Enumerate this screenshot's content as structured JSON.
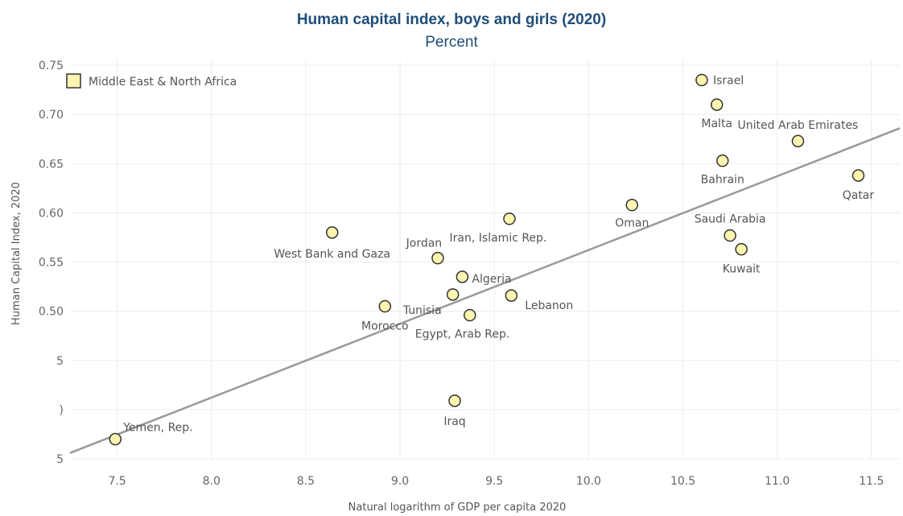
{
  "title": "Human capital index, boys and girls (2020)",
  "subtitle": "Percent",
  "legend": {
    "label": "Middle East & North Africa",
    "color": "#fdf5b0"
  },
  "chart_data": {
    "type": "scatter",
    "title": "Human capital index, boys and girls (2020)",
    "subtitle": "Percent",
    "xlabel": "Natural logarithm of GDP per capita 2020",
    "ylabel": "Human Capital Index, 2020",
    "xlim": [
      7.25,
      11.65
    ],
    "ylim": [
      0.35,
      0.755
    ],
    "x_ticks": [
      "7.5",
      "8.0",
      "8.5",
      "9.0",
      "9.5",
      "10.0",
      "10.5",
      "11.0",
      "11.5"
    ],
    "y_ticks": [
      "0.75",
      "0.70",
      "0.65",
      "0.60",
      "0.55",
      "0.50",
      "5",
      ")",
      "5"
    ],
    "grid": true,
    "legend_position": "top-left",
    "series": [
      {
        "name": "Middle East & North Africa",
        "color": "#fdf5b0",
        "points": [
          {
            "label": "Israel",
            "x": 10.6,
            "y": 0.735
          },
          {
            "label": "Malta",
            "x": 10.68,
            "y": 0.71
          },
          {
            "label": "United Arab Emirates",
            "x": 11.11,
            "y": 0.673
          },
          {
            "label": "Bahrain",
            "x": 10.71,
            "y": 0.653
          },
          {
            "label": "Qatar",
            "x": 11.43,
            "y": 0.638
          },
          {
            "label": "Oman",
            "x": 10.23,
            "y": 0.608
          },
          {
            "label": "Saudi Arabia",
            "x": 10.75,
            "y": 0.577
          },
          {
            "label": "Kuwait",
            "x": 10.81,
            "y": 0.563
          },
          {
            "label": "Iran, Islamic Rep.",
            "x": 9.58,
            "y": 0.594
          },
          {
            "label": "West Bank and Gaza",
            "x": 8.64,
            "y": 0.58
          },
          {
            "label": "Jordan",
            "x": 9.2,
            "y": 0.554
          },
          {
            "label": "Algeria",
            "x": 9.33,
            "y": 0.535
          },
          {
            "label": "Tunisia",
            "x": 9.28,
            "y": 0.517
          },
          {
            "label": "Lebanon",
            "x": 9.59,
            "y": 0.516
          },
          {
            "label": "Egypt, Arab Rep.",
            "x": 9.37,
            "y": 0.496
          },
          {
            "label": "Morocco",
            "x": 8.92,
            "y": 0.505
          },
          {
            "label": "Iraq",
            "x": 9.29,
            "y": 0.409
          },
          {
            "label": "Yemen, Rep.",
            "x": 7.49,
            "y": 0.37
          }
        ]
      }
    ],
    "trendline": {
      "color": "#999999",
      "x": [
        7.25,
        11.65
      ],
      "y": [
        0.356,
        0.686
      ]
    }
  }
}
